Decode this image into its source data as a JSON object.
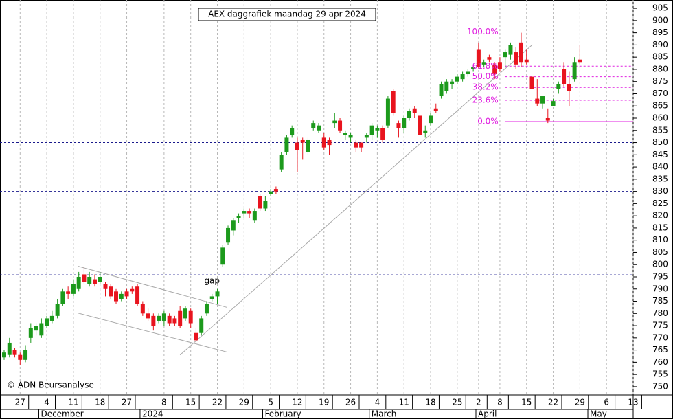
{
  "chart_data": {
    "type": "candlestick",
    "title": "AEX daggrafiek maandag 29 apr 2024",
    "copyright": "© ADN Beursanalyse",
    "annotation": "gap",
    "up_color": "#1c9a1c",
    "down_color": "#e8141e",
    "categories": [
      null,
      null,
      null,
      "27",
      null,
      null,
      null,
      null,
      "4",
      null,
      null,
      null,
      null,
      "11",
      null,
      null,
      null,
      null,
      "18",
      null,
      null,
      null,
      null,
      "27",
      null,
      null,
      null,
      null,
      null,
      null,
      "8",
      null,
      null,
      null,
      null,
      "15",
      null,
      null,
      null,
      null,
      "22",
      null,
      null,
      null,
      null,
      "29",
      null,
      null,
      null,
      null,
      "5",
      null,
      null,
      null,
      null,
      "12",
      null,
      null,
      null,
      null,
      "19",
      null,
      null,
      null,
      null,
      "26",
      null,
      null,
      null,
      null,
      "4",
      null,
      null,
      null,
      null,
      "11",
      null,
      null,
      null,
      null,
      "18",
      null,
      null,
      null,
      null,
      "25",
      null,
      null,
      null,
      "2",
      null,
      null,
      null,
      "8",
      null,
      null,
      null,
      null,
      "15",
      null,
      null,
      null,
      null,
      "22",
      null,
      null,
      null,
      null,
      "29",
      null,
      null,
      null,
      null,
      "6",
      null,
      null,
      null,
      null,
      "13"
    ],
    "months": [
      {
        "label": "December",
        "index": 7
      },
      {
        "label": "2024",
        "index": 26
      },
      {
        "label": "February",
        "index": 49
      },
      {
        "label": "March",
        "index": 69
      },
      {
        "label": "April",
        "index": 89
      },
      {
        "label": "May",
        "index": 110
      }
    ],
    "open": [
      762,
      763,
      765,
      763,
      761,
      770,
      773,
      771,
      775,
      777,
      779,
      784,
      789,
      788,
      790,
      796,
      792,
      794,
      793,
      792,
      791,
      789,
      786,
      789,
      790,
      791,
      784,
      780,
      779,
      777,
      777,
      779,
      778,
      781,
      778,
      781,
      772,
      772,
      780,
      786,
      787,
      800,
      809,
      814,
      819,
      821,
      822,
      818,
      828,
      823,
      829,
      831,
      839,
      846,
      853,
      850,
      851,
      846,
      856,
      855,
      852,
      851,
      858,
      859,
      853,
      852,
      850,
      850,
      852,
      853,
      855,
      856,
      857,
      871,
      858,
      856,
      860,
      864,
      861,
      854,
      858,
      864,
      869,
      871,
      874,
      875,
      876,
      878,
      880,
      888,
      882,
      885,
      882,
      883,
      885,
      886,
      887,
      891,
      884,
      877,
      868,
      866,
      860,
      865,
      872,
      880,
      874,
      876,
      884,
      null,
      null,
      null,
      null,
      null,
      null,
      null,
      null,
      null,
      null
    ],
    "high": [
      765,
      770,
      766,
      764,
      767,
      776,
      776,
      778,
      779,
      781,
      786,
      790,
      791,
      794,
      797,
      799,
      797,
      796,
      797,
      793,
      792,
      790,
      789,
      790,
      791,
      792,
      785,
      782,
      780,
      780,
      781,
      780,
      779,
      783,
      783,
      782,
      774,
      779,
      785,
      788,
      790,
      808,
      816,
      819,
      821,
      823,
      823,
      823,
      829,
      828,
      831,
      832,
      846,
      853,
      857,
      852,
      852,
      852,
      859,
      858,
      854,
      852,
      862,
      860,
      855,
      854,
      851,
      850,
      854,
      858,
      857,
      857,
      869,
      872,
      859,
      861,
      864,
      865,
      862,
      857,
      862,
      866,
      875,
      876,
      876,
      878,
      879,
      880,
      882,
      891,
      884,
      886,
      883,
      885,
      888,
      891,
      889,
      895,
      888,
      878,
      876,
      869,
      864,
      868,
      875,
      883,
      879,
      885,
      890,
      null,
      null,
      null,
      null,
      null,
      null,
      null,
      null,
      null,
      null
    ],
    "low": [
      761,
      762,
      762,
      759,
      760,
      768,
      771,
      770,
      774,
      776,
      778,
      783,
      786,
      787,
      789,
      792,
      791,
      791,
      792,
      787,
      786,
      784,
      785,
      786,
      788,
      783,
      779,
      777,
      773,
      776,
      775,
      775,
      775,
      774,
      777,
      774,
      768,
      771,
      779,
      785,
      784,
      799,
      808,
      812,
      817,
      819,
      819,
      817,
      822,
      822,
      828,
      829,
      838,
      845,
      852,
      838,
      843,
      845,
      855,
      854,
      847,
      845,
      856,
      854,
      851,
      850,
      846,
      846,
      850,
      851,
      852,
      850,
      856,
      861,
      852,
      854,
      859,
      860,
      851,
      852,
      857,
      862,
      868,
      870,
      872,
      874,
      875,
      877,
      879,
      880,
      881,
      883,
      876,
      879,
      881,
      884,
      880,
      881,
      882,
      871,
      865,
      864,
      858,
      865,
      870,
      873,
      865,
      875,
      882,
      null,
      null,
      null,
      null,
      null,
      null,
      null,
      null,
      null,
      null
    ],
    "close": [
      764,
      768,
      763,
      761,
      765,
      774,
      775,
      776,
      778,
      779,
      784,
      789,
      788,
      792,
      795,
      793,
      795,
      792,
      795,
      790,
      787,
      785,
      788,
      787,
      789,
      784,
      780,
      778,
      775,
      779,
      780,
      776,
      776,
      775,
      782,
      776,
      769,
      778,
      784,
      787,
      789,
      807,
      815,
      818,
      820,
      822,
      821,
      822,
      823,
      826,
      830,
      830,
      845,
      852,
      856,
      847,
      850,
      851,
      858,
      857,
      848,
      849,
      859,
      855,
      854,
      853,
      848,
      848,
      853,
      857,
      856,
      851,
      868,
      862,
      856,
      860,
      863,
      862,
      853,
      855,
      861,
      863,
      874,
      875,
      875,
      877,
      878,
      879,
      881,
      881,
      883,
      884,
      878,
      880,
      887,
      890,
      882,
      883,
      883,
      872,
      866,
      869,
      859,
      867,
      874,
      874,
      871,
      883,
      883,
      null,
      null,
      null,
      null,
      null,
      null,
      null,
      null,
      null,
      null
    ],
    "ylim": [
      746.6,
      908.4
    ],
    "yticks": [
      750,
      755,
      760,
      765,
      770,
      775,
      780,
      785,
      790,
      795,
      800,
      805,
      810,
      815,
      820,
      825,
      830,
      835,
      840,
      845,
      850,
      855,
      860,
      865,
      870,
      875,
      880,
      885,
      890,
      895,
      900,
      905
    ],
    "support_lines": [
      850,
      830,
      795.8
    ],
    "support_color": "#1a1a8c",
    "fib_color": "#e020e0",
    "fib_start": 94,
    "fib_levels": [
      {
        "label": "100.0%",
        "value": 895.3
      },
      {
        "label": "61.8%",
        "value": 881.3
      },
      {
        "label": "50.0%",
        "value": 877
      },
      {
        "label": "38.2%",
        "value": 872.6
      },
      {
        "label": "23.6%",
        "value": 867.3
      },
      {
        "label": "0.0%",
        "value": 858.6
      }
    ],
    "trend_color": "#a8a8a8",
    "trend_lines": [
      {
        "start": [
          13.8,
          799.4
        ],
        "end": [
          41.8,
          782.5
        ]
      },
      {
        "start": [
          13.8,
          780.2
        ],
        "end": [
          41.8,
          764.2
        ]
      },
      {
        "start": [
          33,
          763
        ],
        "end": [
          99.1,
          890.1
        ]
      }
    ]
  }
}
